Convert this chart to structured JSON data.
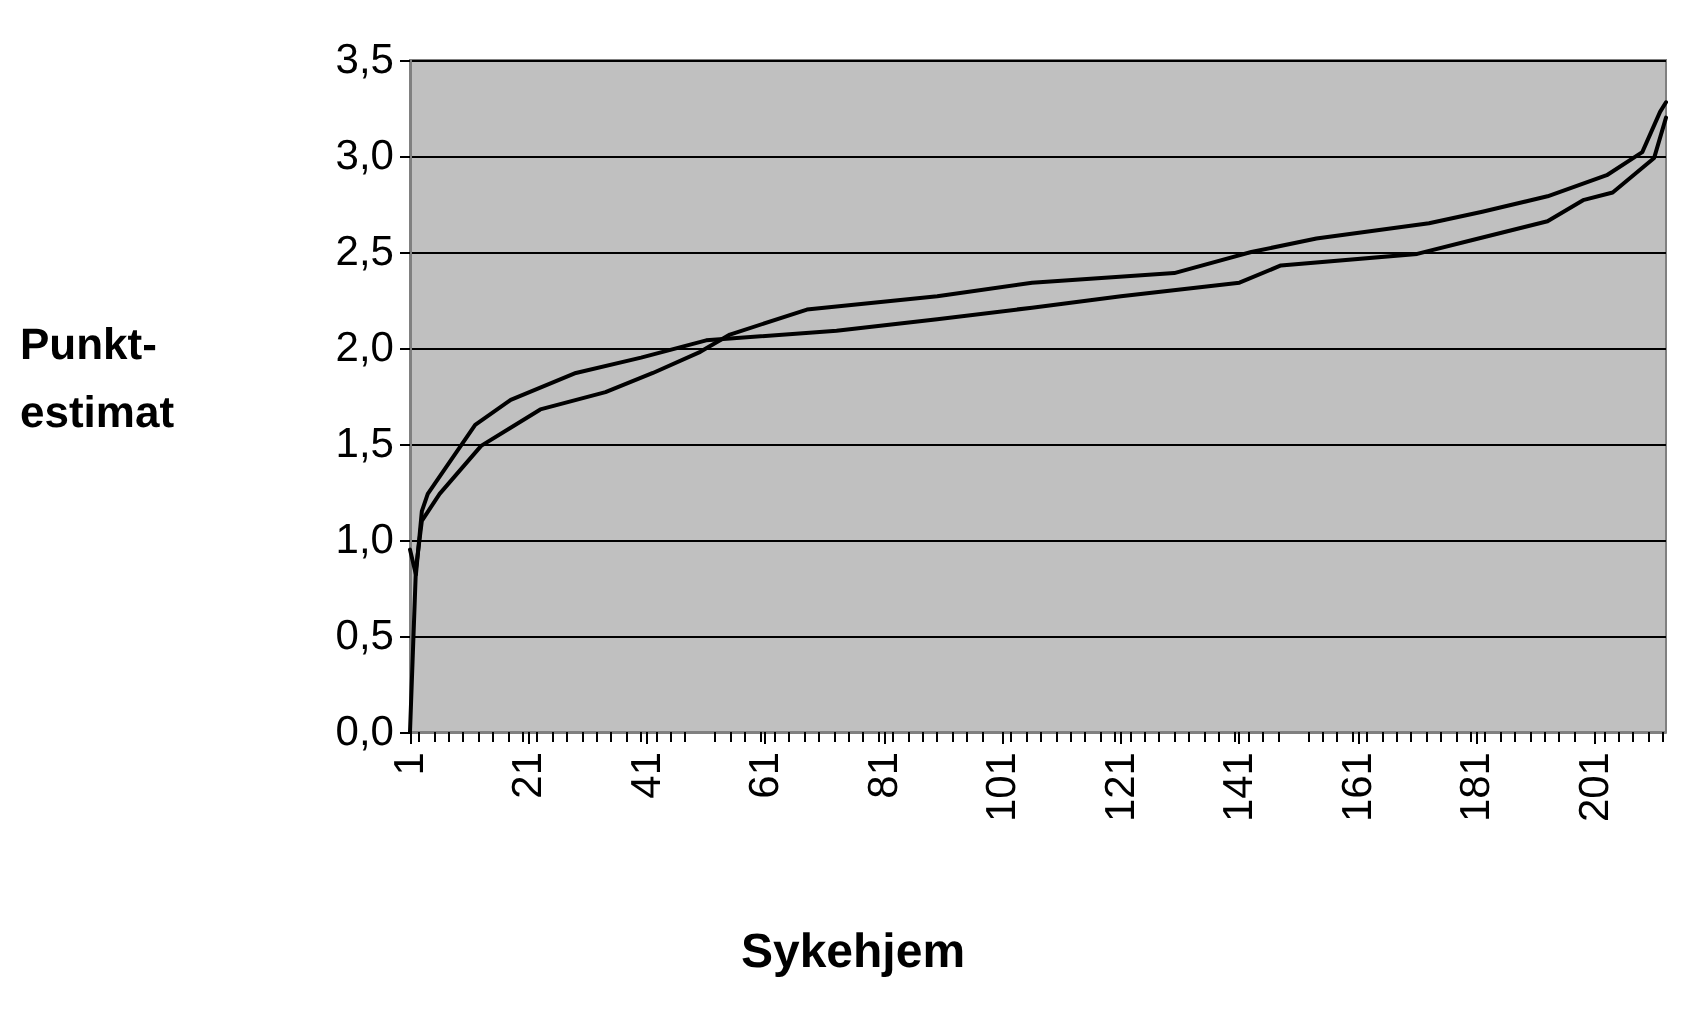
{
  "chart_data": {
    "type": "line",
    "xlabel": "Sykehjem",
    "ylabel": "Punkt-\nestimat",
    "xlim": [
      1,
      213
    ],
    "xticks": [
      1,
      21,
      41,
      61,
      81,
      101,
      121,
      141,
      161,
      181,
      201
    ],
    "ylim": [
      0,
      3.5
    ],
    "yticks": [
      {
        "value": 0,
        "label": "0,0"
      },
      {
        "value": 0.5,
        "label": "0,5"
      },
      {
        "value": 1,
        "label": "1,0"
      },
      {
        "value": 1.5,
        "label": "1,5"
      },
      {
        "value": 2,
        "label": "2,0"
      },
      {
        "value": 2.5,
        "label": "2,5"
      },
      {
        "value": 3,
        "label": "3,0"
      },
      {
        "value": 3.5,
        "label": "3,5"
      }
    ],
    "grid": "y",
    "marker": "none",
    "line_style": "solid",
    "series": [
      {
        "color": "#000000",
        "x": [
          1,
          2,
          3,
          4,
          12,
          18,
          29,
          40,
          51,
          73,
          90,
          106,
          121,
          141,
          148,
          171,
          180,
          193,
          199,
          204,
          211,
          213
        ],
        "values": [
          0.95,
          0.82,
          1.15,
          1.24,
          1.6,
          1.73,
          1.87,
          1.95,
          2.04,
          2.09,
          2.15,
          2.21,
          2.27,
          2.34,
          2.43,
          2.49,
          2.56,
          2.66,
          2.77,
          2.81,
          2.99,
          3.2
        ]
      },
      {
        "color": "#000000",
        "x": [
          1,
          2,
          3,
          6,
          13,
          23,
          34,
          42,
          50,
          55,
          68,
          90,
          106,
          130,
          143,
          154,
          173,
          182,
          193,
          203,
          209,
          212,
          213
        ],
        "values": [
          0,
          0.85,
          1.1,
          1.24,
          1.49,
          1.68,
          1.77,
          1.87,
          1.98,
          2.07,
          2.2,
          2.27,
          2.34,
          2.39,
          2.5,
          2.57,
          2.65,
          2.71,
          2.79,
          2.9,
          3.02,
          3.23,
          3.28
        ]
      }
    ]
  }
}
